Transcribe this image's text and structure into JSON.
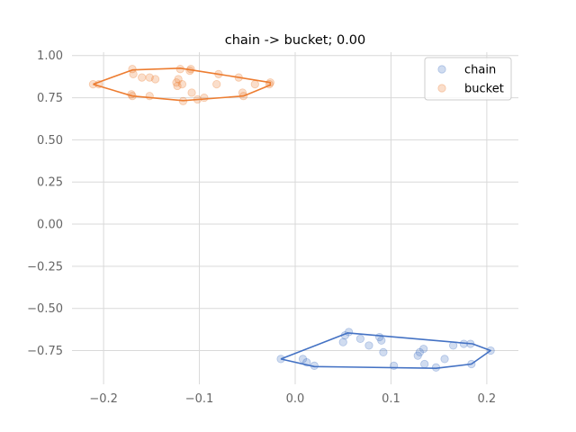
{
  "chart_data": {
    "type": "scatter",
    "title": "chain -> bucket; 0.00",
    "xlabel": "",
    "ylabel": "",
    "xlim": [
      -0.233,
      0.233
    ],
    "ylim": [
      -0.95,
      1.02
    ],
    "x_ticks": [
      -0.2,
      -0.1,
      0.0,
      0.1,
      0.2
    ],
    "x_tick_labels": [
      "−0.2",
      "−0.1",
      "0.0",
      "0.1",
      "0.2"
    ],
    "y_ticks": [
      1.0,
      0.75,
      0.5,
      0.25,
      0.0,
      -0.25,
      -0.5,
      -0.75
    ],
    "y_tick_labels": [
      "1.00",
      "0.75",
      "0.50",
      "0.25",
      "0.00",
      "−0.25",
      "−0.50",
      "−0.75"
    ],
    "grid": true,
    "legend_position": "top-right",
    "series": [
      {
        "name": "chain",
        "color": "#4472c4",
        "points": [
          [
            -0.015,
            -0.8
          ],
          [
            0.008,
            -0.8
          ],
          [
            0.012,
            -0.82
          ],
          [
            0.02,
            -0.84
          ],
          [
            0.05,
            -0.7
          ],
          [
            0.052,
            -0.66
          ],
          [
            0.056,
            -0.64
          ],
          [
            0.068,
            -0.68
          ],
          [
            0.077,
            -0.72
          ],
          [
            0.088,
            -0.67
          ],
          [
            0.09,
            -0.69
          ],
          [
            0.092,
            -0.76
          ],
          [
            0.103,
            -0.84
          ],
          [
            0.128,
            -0.78
          ],
          [
            0.13,
            -0.76
          ],
          [
            0.134,
            -0.74
          ],
          [
            0.135,
            -0.83
          ],
          [
            0.147,
            -0.85
          ],
          [
            0.156,
            -0.8
          ],
          [
            0.165,
            -0.72
          ],
          [
            0.176,
            -0.71
          ],
          [
            0.183,
            -0.71
          ],
          [
            0.184,
            -0.83
          ],
          [
            0.204,
            -0.75
          ]
        ],
        "hull": [
          [
            -0.015,
            -0.8
          ],
          [
            0.055,
            -0.645
          ],
          [
            0.185,
            -0.71
          ],
          [
            0.204,
            -0.75
          ],
          [
            0.184,
            -0.83
          ],
          [
            0.147,
            -0.855
          ],
          [
            0.02,
            -0.845
          ]
        ]
      },
      {
        "name": "bucket",
        "color": "#ed7d31",
        "points": [
          [
            -0.211,
            0.83
          ],
          [
            -0.205,
            0.83
          ],
          [
            -0.171,
            0.77
          ],
          [
            -0.17,
            0.76
          ],
          [
            -0.17,
            0.92
          ],
          [
            -0.169,
            0.89
          ],
          [
            -0.16,
            0.87
          ],
          [
            -0.152,
            0.87
          ],
          [
            -0.152,
            0.76
          ],
          [
            -0.146,
            0.86
          ],
          [
            -0.124,
            0.84
          ],
          [
            -0.123,
            0.82
          ],
          [
            -0.122,
            0.86
          ],
          [
            -0.12,
            0.92
          ],
          [
            -0.118,
            0.83
          ],
          [
            -0.117,
            0.73
          ],
          [
            -0.11,
            0.91
          ],
          [
            -0.109,
            0.92
          ],
          [
            -0.108,
            0.78
          ],
          [
            -0.102,
            0.74
          ],
          [
            -0.095,
            0.75
          ],
          [
            -0.082,
            0.83
          ],
          [
            -0.08,
            0.89
          ],
          [
            -0.059,
            0.87
          ],
          [
            -0.055,
            0.78
          ],
          [
            -0.054,
            0.76
          ],
          [
            -0.042,
            0.83
          ],
          [
            -0.027,
            0.83
          ],
          [
            -0.026,
            0.84
          ]
        ],
        "hull": [
          [
            -0.211,
            0.83
          ],
          [
            -0.17,
            0.915
          ],
          [
            -0.12,
            0.925
          ],
          [
            -0.08,
            0.89
          ],
          [
            -0.026,
            0.84
          ],
          [
            -0.026,
            0.825
          ],
          [
            -0.054,
            0.76
          ],
          [
            -0.117,
            0.733
          ],
          [
            -0.17,
            0.76
          ]
        ]
      }
    ]
  }
}
